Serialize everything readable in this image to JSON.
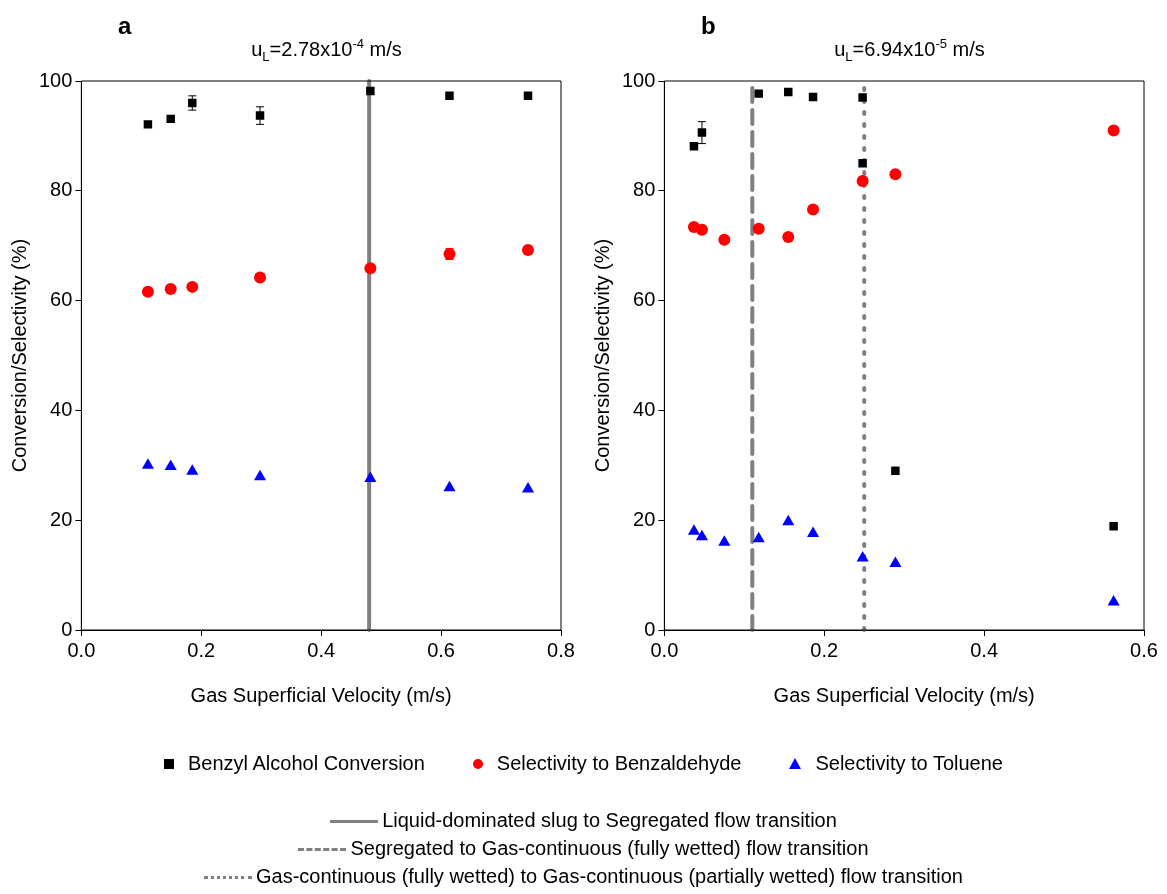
{
  "chart_data": [
    {
      "type": "scatter",
      "title": "a",
      "subtitle": "u$_{L}$=2.78x10$^{-4}$ m/s",
      "xlabel": "Gas Superficial Velocity (m/s)",
      "ylabel": "Conversion/Selectivity (%)",
      "xlim": [
        0,
        0.8
      ],
      "xticks": [
        {
          "value": 0,
          "label": "0.0"
        },
        0.2,
        0.4,
        0.6,
        0.8
      ],
      "ylim": [
        0,
        100
      ],
      "yticks": [
        0,
        20,
        40,
        60,
        80,
        100
      ],
      "grid": false,
      "legend": "bottom",
      "series": [
        {
          "name": "Benzyl Alcohol Conversion",
          "color": "#000000",
          "marker": "square",
          "x": [
            0.111,
            0.149,
            0.185,
            0.298,
            0.482,
            0.614,
            0.745
          ],
          "values": [
            92.1,
            93.1,
            96.0,
            93.7,
            98.2,
            97.3,
            97.3
          ],
          "errors": [
            null,
            null,
            1.3,
            1.6,
            null,
            null,
            null
          ]
        },
        {
          "name": "Selectivity to Benzaldehyde",
          "color": "#ff0000",
          "marker": "circle",
          "x": [
            0.111,
            0.149,
            0.185,
            0.298,
            0.482,
            0.614,
            0.745
          ],
          "values": [
            61.6,
            62.1,
            62.5,
            64.2,
            65.9,
            68.5,
            69.2
          ],
          "errors": [
            null,
            null,
            null,
            null,
            null,
            1.0,
            null
          ]
        },
        {
          "name": "Selectivity to Toluene",
          "color": "#0000ff",
          "marker": "triangle",
          "x": [
            0.111,
            0.149,
            0.185,
            0.298,
            0.482,
            0.614,
            0.745
          ],
          "values": [
            30.0,
            29.8,
            28.9,
            27.9,
            27.6,
            25.9,
            25.7
          ]
        }
      ],
      "ref_lines": [
        {
          "axis": "x",
          "value": 0.48,
          "label": "Liquid-dominated slug to Segregated flow transition",
          "color": "#808080",
          "line_style": "solid"
        }
      ]
    },
    {
      "type": "scatter",
      "title": "b",
      "subtitle": "u$_{L}$=6.94x10$^{-5}$ m/s",
      "xlabel": "Gas Superficial Velocity (m/s)",
      "ylabel": "Conversion/Selectivity (%)",
      "xlim": [
        0,
        0.6
      ],
      "xticks": [
        {
          "value": 0,
          "label": "0.0"
        },
        0.2,
        0.4,
        0.6
      ],
      "ylim": [
        0,
        100
      ],
      "yticks": [
        0,
        20,
        40,
        60,
        80,
        100
      ],
      "grid": false,
      "legend": "bottom",
      "series": [
        {
          "color": "#000000",
          "marker": "square",
          "x": [
            0.037,
            0.047,
            0.118,
            0.155,
            0.186,
            0.248,
            0.248,
            0.289,
            0.562
          ],
          "values": [
            88.1,
            90.6,
            97.7,
            98.0,
            97.1,
            97.0,
            85.0,
            29.0,
            18.9
          ],
          "errors": [
            null,
            2.0,
            null,
            null,
            null,
            null,
            null,
            null,
            null
          ]
        },
        {
          "color": "#ff0000",
          "marker": "circle",
          "x": [
            0.037,
            0.047,
            0.075,
            0.118,
            0.155,
            0.186,
            0.248,
            0.289,
            0.562
          ],
          "values": [
            73.4,
            72.9,
            71.1,
            73.1,
            71.6,
            76.6,
            81.8,
            83.0,
            91.0
          ]
        },
        {
          "color": "#0000ff",
          "marker": "triangle",
          "x": [
            0.037,
            0.047,
            0.075,
            0.118,
            0.155,
            0.186,
            0.248,
            0.289,
            0.562
          ],
          "values": [
            18.0,
            17.0,
            16.0,
            16.6,
            19.7,
            17.6,
            13.1,
            12.1,
            5.1
          ]
        }
      ],
      "ref_lines": [
        {
          "axis": "x",
          "value": 0.11,
          "label": "Segregated to Gas-continuous (fully wetted) flow transition",
          "color": "#808080",
          "line_style": "dashed"
        },
        {
          "axis": "x",
          "value": 0.25,
          "label": "Gas-continuous (fully wetted) to Gas-continuous (partially wetted) flow transition",
          "color": "#808080",
          "line_style": "dotted"
        }
      ]
    }
  ]
}
